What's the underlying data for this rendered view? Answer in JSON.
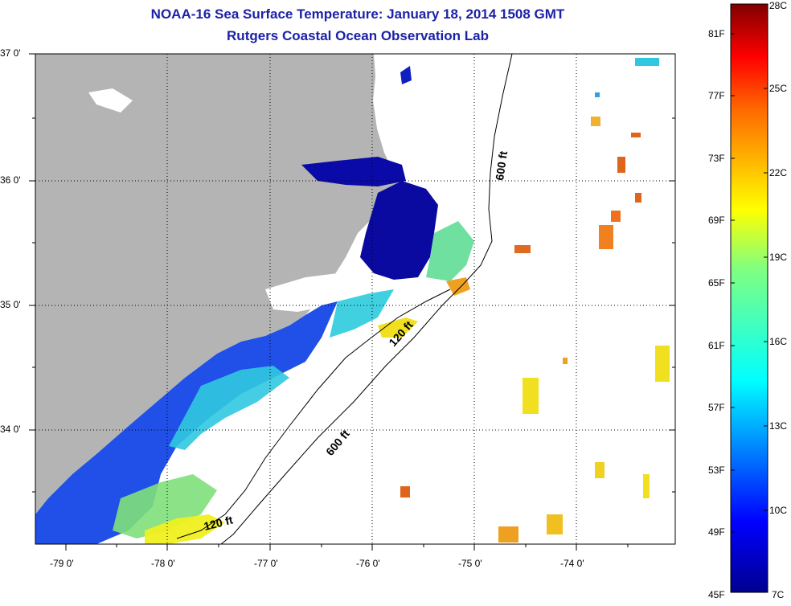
{
  "header": {
    "title": "NOAA-16 Sea Surface Temperature:  January 18, 2014 1508 GMT",
    "subtitle": "Rutgers Coastal Ocean Observation Lab"
  },
  "map": {
    "lat_labels": [
      "37 0'",
      "36 0'",
      "35 0'",
      "34 0'"
    ],
    "lon_labels": [
      "-79 0'",
      "-78 0'",
      "-77 0'",
      "-76 0'",
      "-75 0'",
      "-74 0'"
    ],
    "contours": [
      {
        "label": "600 ft"
      },
      {
        "label": "120 ft"
      },
      {
        "label": "600 ft"
      },
      {
        "label": "120 ft"
      }
    ],
    "colors": {
      "land": "#b4b4b4",
      "cloud": "#ffffff",
      "cold": "#00008f",
      "warm": "#e0651c"
    }
  },
  "colorbar": {
    "fahrenheit": [
      "81F",
      "77F",
      "73F",
      "69F",
      "65F",
      "61F",
      "57F",
      "53F",
      "49F",
      "45F"
    ],
    "celsius": [
      "28C",
      "25C",
      "22C",
      "19C",
      "16C",
      "13C",
      "10C",
      "7C"
    ]
  }
}
